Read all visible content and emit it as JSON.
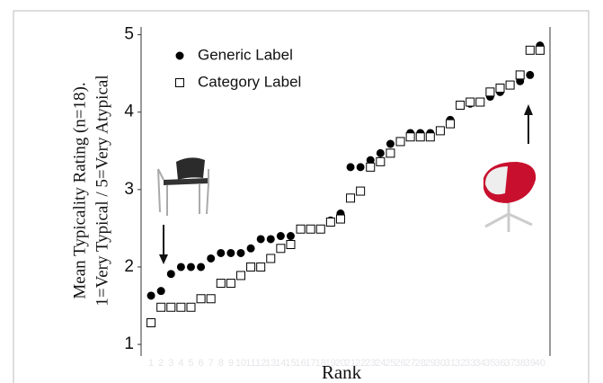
{
  "chart_data": {
    "type": "scatter",
    "y_label": [
      "Mean Typicality Rating (n=18).",
      "1=Very Typical / 5=Very Atypical"
    ],
    "x_label": "Rank",
    "x": [
      1,
      2,
      3,
      4,
      5,
      6,
      7,
      8,
      9,
      10,
      11,
      12,
      13,
      14,
      15,
      16,
      17,
      18,
      19,
      20,
      21,
      22,
      23,
      24,
      25,
      26,
      27,
      28,
      29,
      30,
      31,
      32,
      33,
      34,
      35,
      36,
      37,
      38,
      39,
      40
    ],
    "series": [
      {
        "name": "Generic Label",
        "color": "#000000",
        "marker": "circle",
        "filled": true,
        "values": [
          1.63,
          1.69,
          1.91,
          2.0,
          2.0,
          2.0,
          2.11,
          2.18,
          2.18,
          2.18,
          2.24,
          2.36,
          2.36,
          2.4,
          2.4,
          2.49,
          2.49,
          2.49,
          2.6,
          2.69,
          3.29,
          3.29,
          3.38,
          3.47,
          3.59,
          3.62,
          3.73,
          3.73,
          3.73,
          3.76,
          3.9,
          4.09,
          4.11,
          4.13,
          4.2,
          4.26,
          4.35,
          4.4,
          4.48,
          4.86
        ]
      },
      {
        "name": "Category Label",
        "color": "#000000",
        "marker": "square",
        "filled": false,
        "values": [
          1.28,
          1.48,
          1.48,
          1.48,
          1.48,
          1.59,
          1.59,
          1.79,
          1.79,
          1.89,
          2.0,
          2.0,
          2.11,
          2.24,
          2.29,
          2.49,
          2.49,
          2.49,
          2.58,
          2.62,
          2.89,
          2.98,
          3.29,
          3.36,
          3.47,
          3.62,
          3.68,
          3.68,
          3.68,
          3.76,
          3.85,
          4.09,
          4.13,
          4.13,
          4.26,
          4.31,
          4.35,
          4.48,
          4.8,
          4.8
        ]
      }
    ],
    "xlim": [
      0,
      41
    ],
    "xticks": [
      1,
      2,
      3,
      4,
      5,
      6,
      7,
      8,
      9,
      10,
      11,
      12,
      13,
      14,
      15,
      16,
      17,
      18,
      19,
      20,
      21,
      22,
      23,
      24,
      25,
      26,
      27,
      28,
      29,
      30,
      31,
      32,
      33,
      34,
      35,
      36,
      37,
      38,
      39,
      40
    ],
    "ylim": [
      0.85,
      5.1
    ],
    "yticks": [
      1,
      2,
      3,
      4,
      5
    ],
    "grid": false
  }
}
